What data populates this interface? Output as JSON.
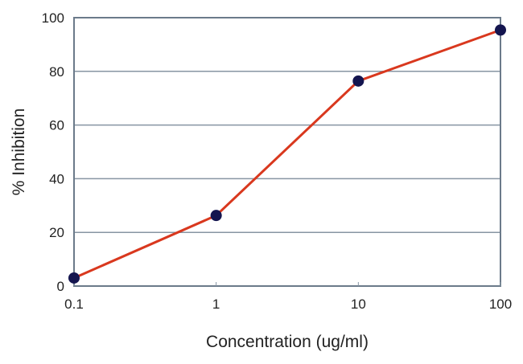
{
  "chart_data": {
    "type": "line",
    "title": "",
    "xlabel": "Concentration (ug/ml)",
    "ylabel": "% Inhibition",
    "xscale": "log",
    "xlim": [
      0.1,
      100
    ],
    "ylim": [
      0,
      100
    ],
    "x_ticks": [
      "0.1",
      "1",
      "10",
      "100"
    ],
    "x_tick_values": [
      0.1,
      1,
      10,
      100
    ],
    "y_ticks": [
      "0",
      "20",
      "40",
      "60",
      "80",
      "100"
    ],
    "y_tick_values": [
      0,
      20,
      40,
      60,
      80,
      100
    ],
    "grid": "horizontal",
    "legend": "none",
    "series": [
      {
        "name": "% Inhibition",
        "x": [
          0.1,
          1,
          10,
          100
        ],
        "y": [
          3.0,
          26.3,
          76.4,
          95.4
        ],
        "line_color": "#d9381e",
        "marker_color": "#14154f"
      }
    ]
  }
}
